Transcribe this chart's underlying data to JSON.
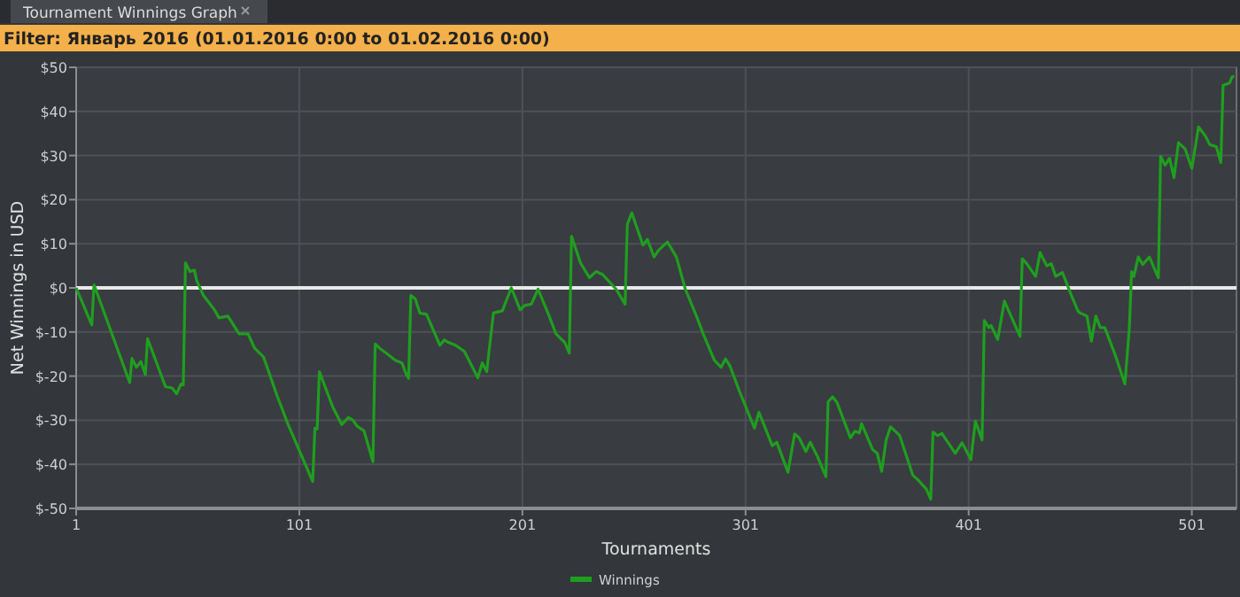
{
  "chart_data": {
    "type": "line",
    "title": "Tournament Winnings Graph",
    "subtitle": "Filter: Январь 2016 (01.01.2016 0:00 to 01.02.2016 0:00)",
    "xlabel": "Tournaments",
    "ylabel": "Net Winnings in USD",
    "x": [
      1,
      8,
      9,
      25,
      26,
      28,
      30,
      32,
      33,
      41,
      44,
      46,
      48,
      49,
      50,
      52,
      54,
      55,
      58,
      60,
      63,
      65,
      69,
      74,
      78,
      81,
      85,
      91,
      96,
      107,
      108,
      109,
      110,
      116,
      120,
      123,
      125,
      127,
      130,
      134,
      135,
      137,
      140,
      144,
      147,
      149,
      150,
      151,
      153,
      155,
      158,
      164,
      166,
      168,
      171,
      175,
      177,
      181,
      183,
      185,
      188,
      192,
      196,
      200,
      202,
      205,
      208,
      213,
      216,
      220,
      222,
      223,
      227,
      231,
      234,
      237,
      243,
      247,
      248,
      250,
      255,
      257,
      260,
      262,
      266,
      270,
      274,
      279,
      282,
      287,
      290,
      292,
      294,
      298,
      305,
      307,
      313,
      315,
      320,
      323,
      325,
      328,
      330,
      333,
      337,
      338,
      340,
      342,
      348,
      350,
      352,
      353,
      358,
      360,
      362,
      364,
      366,
      370,
      376,
      378,
      382,
      384,
      385,
      387,
      389,
      395,
      398,
      402,
      404,
      407,
      408,
      410,
      411,
      414,
      417,
      419,
      424,
      425,
      427,
      431,
      433,
      436,
      438,
      440,
      443,
      447,
      450,
      451,
      454,
      456,
      458,
      460,
      462,
      467,
      471,
      473,
      474,
      475,
      477,
      479,
      482,
      486,
      487,
      489,
      491,
      493,
      495,
      498,
      501,
      504,
      507,
      509,
      512,
      514,
      515,
      518,
      519,
      520
    ],
    "series": [
      {
        "name": "Winnings",
        "color": "#1f9e1f",
        "values": [
          0,
          -8.4,
          0.7,
          -21.5,
          -16,
          -18,
          -16.7,
          -19.7,
          -11.5,
          -22.4,
          -22.7,
          -24,
          -21.8,
          -22,
          5.7,
          3.7,
          4,
          1.7,
          -1.7,
          -3,
          -5,
          -6.8,
          -6.4,
          -10.4,
          -10.4,
          -13.7,
          -15.7,
          -24.4,
          -31,
          -43.9,
          -31.8,
          -32,
          -19,
          -27,
          -31,
          -29.4,
          -30,
          -31.4,
          -32.4,
          -39.4,
          -12.7,
          -13.7,
          -14.8,
          -16.4,
          -17,
          -19.7,
          -20.5,
          -1.7,
          -2.5,
          -5.7,
          -6,
          -13,
          -11.8,
          -12.4,
          -13,
          -14.4,
          -16.4,
          -20.4,
          -17,
          -19,
          -5.7,
          -5.2,
          0,
          -5,
          -4,
          -3.7,
          -0.3,
          -6.4,
          -10.4,
          -12.4,
          -14.8,
          11.7,
          5.7,
          2.3,
          3.7,
          3,
          -0.3,
          -3.7,
          14.4,
          17,
          9.7,
          11,
          7,
          8.5,
          10.4,
          7,
          -0.3,
          -6.4,
          -10.4,
          -16.4,
          -18,
          -16.1,
          -17.7,
          -23.1,
          -31.8,
          -28.2,
          -35.8,
          -35,
          -41.8,
          -33.1,
          -34,
          -37.1,
          -35,
          -38,
          -42.8,
          -25.8,
          -24.7,
          -26,
          -34,
          -32.5,
          -32.9,
          -30.8,
          -36.7,
          -37.5,
          -41.6,
          -34.5,
          -31.5,
          -33.4,
          -42.5,
          -43.4,
          -45.6,
          -47.9,
          -32.7,
          -33.5,
          -33,
          -37.5,
          -35.1,
          -38.9,
          -30.2,
          -34.5,
          -7.4,
          -9,
          -8.5,
          -11.7,
          -3,
          -5.3,
          -11,
          6.6,
          5.5,
          2.6,
          8,
          5,
          5.5,
          2.6,
          3.5,
          -1.7,
          -5.3,
          -5.7,
          -6.4,
          -12.1,
          -6.4,
          -9,
          -9,
          -15.7,
          -21.8,
          -9,
          3.7,
          2.6,
          7,
          5.3,
          7,
          2.3,
          29.8,
          27.8,
          29.4,
          25,
          32.9,
          31.5,
          27.1,
          36.5,
          34.5,
          32.5,
          32,
          28.4,
          45.9,
          46.5,
          47.8,
          48
        ]
      }
    ],
    "xlim": [
      1,
      521
    ],
    "xticks": [
      1,
      101,
      201,
      301,
      401,
      501
    ],
    "ylim": [
      -50,
      50
    ],
    "yticks": [
      {
        "value": -50,
        "label": "$-50"
      },
      {
        "value": -40,
        "label": "$-40"
      },
      {
        "value": -30,
        "label": "$-30"
      },
      {
        "value": -20,
        "label": "$-20"
      },
      {
        "value": -10,
        "label": "$-10"
      },
      {
        "value": 0,
        "label": "$0"
      },
      {
        "value": 10,
        "label": "$10"
      },
      {
        "value": 20,
        "label": "$20"
      },
      {
        "value": 30,
        "label": "$30"
      },
      {
        "value": 40,
        "label": "$40"
      },
      {
        "value": 50,
        "label": "$50"
      }
    ],
    "ref_lines": [
      {
        "axis": "y",
        "value": 0,
        "color": "#e8e8e8"
      }
    ],
    "grid": true,
    "legend": "bottom"
  }
}
